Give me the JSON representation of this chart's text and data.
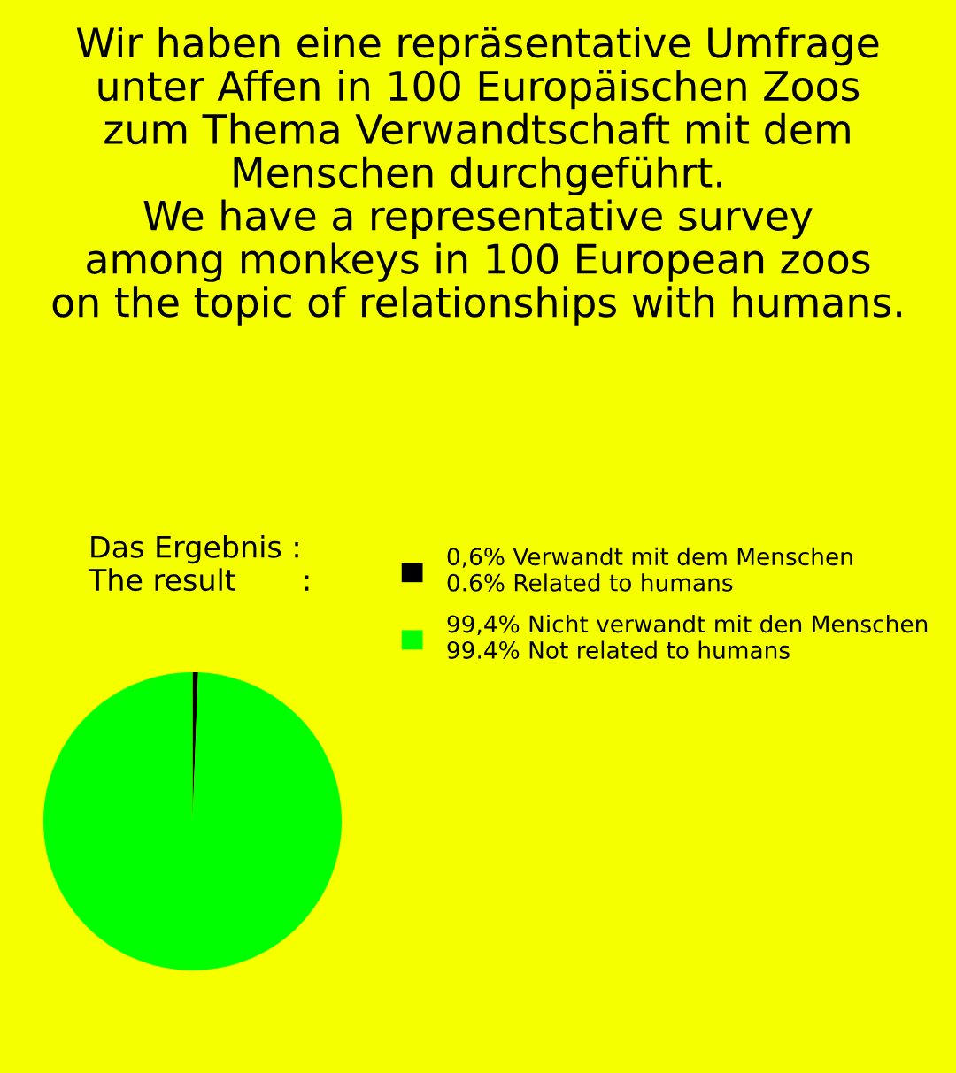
{
  "chart_data": {
    "type": "pie",
    "title": "Wir haben eine repräsentative Umfrage\nunter Affen in 100 Europäischen Zoos\nzum Thema Verwandtschaft mit dem\nMenschen durchgeführt.\nWe have a representative survey\namong monkeys in 100 European zoos\non the topic of relationships with humans.",
    "annotations": [
      "Das Ergebnis :\nThe result       :"
    ],
    "categories": [
      "0,6% Verwandt mit dem Menschen\n0.6% Related to humans",
      "99,4% Nicht verwandt mit den Menschen\n99.4% Not related to humans"
    ],
    "values": [
      0.6,
      99.4
    ],
    "colors": [
      "#000000",
      "#00ff00"
    ],
    "legend": "top right"
  }
}
